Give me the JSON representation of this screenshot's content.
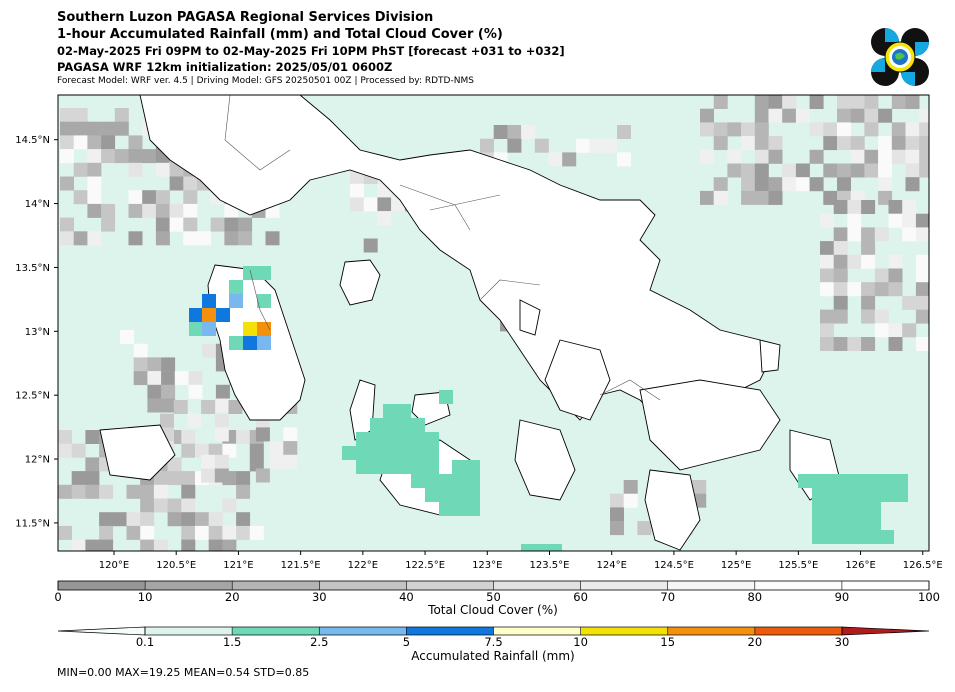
{
  "header": {
    "title": "Southern Luzon PAGASA Regional Services Division",
    "subtitle": "1-hour Accumulated Rainfall (mm) and Total Cloud Cover (%)",
    "period": "02-May-2025 Fri 09PM to 02-May-2025 Fri 10PM PhST [forecast +031 to +032]",
    "init": "PAGASA WRF 12km initialization: 2025/05/01 0600Z",
    "model_info": "Forecast Model: WRF ver. 4.5 | Driving Model: GFS 20250501 00Z | Processed by: RDTD-NMS"
  },
  "logo": {
    "icon": "pagasa-logo-icon"
  },
  "map": {
    "lon_range": [
      119.55,
      126.55
    ],
    "lat_range": [
      11.28,
      14.85
    ],
    "lon_ticks": [
      "120°E",
      "120.5°E",
      "121°E",
      "121.5°E",
      "122°E",
      "122.5°E",
      "123°E",
      "123.5°E",
      "124°E",
      "124.5°E",
      "125°E",
      "125.5°E",
      "126°E",
      "126.5°E"
    ],
    "lat_ticks": [
      "11.5°N",
      "12°N",
      "12.5°N",
      "13°N",
      "13.5°N",
      "14°N",
      "14.5°N"
    ],
    "background_color": "#dcf4ec",
    "land_color": "#ffffff"
  },
  "cloud_colorbar": {
    "label": "Total Cloud Cover (%)",
    "ticks": [
      "0",
      "10",
      "20",
      "30",
      "40",
      "50",
      "60",
      "70",
      "80",
      "90",
      "100"
    ],
    "colors": [
      "#969696",
      "#a5a5a5",
      "#b4b4b4",
      "#c3c3c3",
      "#d2d2d2",
      "#e1e1e1",
      "#ececec",
      "#f6f6f6",
      "#fcfcfc",
      "#ffffff"
    ]
  },
  "rain_colorbar": {
    "label": "Accumulated Rainfall (mm)",
    "ticks": [
      "0.1",
      "1.5",
      "2.5",
      "5",
      "7.5",
      "10",
      "15",
      "20",
      "30"
    ],
    "colors": [
      "#ddf3ec",
      "#6fd9b7",
      "#79b8ee",
      "#0f78de",
      "#fefec8",
      "#f3e104",
      "#f4900c",
      "#ec5a0c",
      "#b01c1c"
    ]
  },
  "stats": "MIN=0.00   MAX=19.25   MEAN=0.54   STD=0.85"
}
